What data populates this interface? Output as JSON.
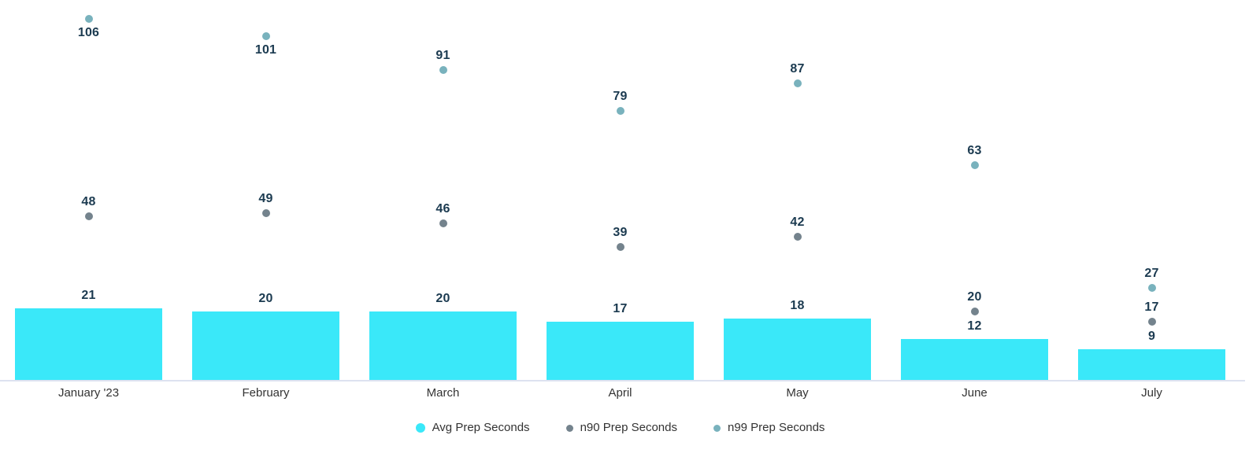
{
  "chart_data": {
    "type": "combo",
    "subtype": "bar-with-point-overlays",
    "title": "",
    "xlabel": "",
    "ylabel": "",
    "categories": [
      "January '23",
      "February",
      "March",
      "April",
      "May",
      "June",
      "July"
    ],
    "series": [
      {
        "name": "Avg Prep Seconds",
        "type": "bar",
        "color": "#3ae8f9",
        "values": [
          21,
          20,
          20,
          17,
          18,
          12,
          9
        ]
      },
      {
        "name": "n90 Prep Seconds",
        "type": "scatter",
        "color": "#74838d",
        "values": [
          48,
          49,
          46,
          39,
          42,
          20,
          17
        ]
      },
      {
        "name": "n99 Prep Seconds",
        "type": "scatter",
        "color": "#79b2bd",
        "values": [
          106,
          101,
          91,
          79,
          87,
          63,
          27
        ]
      }
    ],
    "ylim": [
      0,
      112
    ],
    "grid": false,
    "y_axis_visible": false,
    "value_labels": true,
    "value_label_color": "#1b3a50",
    "axis_line_color": "#dde2f0",
    "axis_text_color": "#333333",
    "legend_position": "bottom-center"
  }
}
